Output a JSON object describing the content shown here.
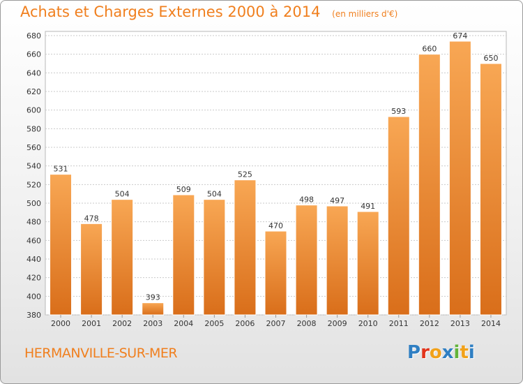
{
  "chart_data": {
    "type": "bar",
    "title": "Achats et Charges Externes 2000 à 2014",
    "unit_note": "(en milliers d'€)",
    "categories": [
      "2000",
      "2001",
      "2002",
      "2003",
      "2004",
      "2005",
      "2006",
      "2007",
      "2008",
      "2009",
      "2010",
      "2011",
      "2012",
      "2013",
      "2014"
    ],
    "values": [
      531,
      478,
      504,
      393,
      509,
      504,
      525,
      470,
      498,
      497,
      491,
      593,
      660,
      674,
      650
    ],
    "ylim": [
      380,
      680
    ],
    "yticks": [
      380,
      400,
      420,
      440,
      460,
      480,
      500,
      520,
      540,
      560,
      580,
      600,
      620,
      640,
      660,
      680
    ],
    "grid": true,
    "bar_color": "#f49a3e"
  },
  "location": "HERMANVILLE-SUR-MER",
  "logo": {
    "text": "Proxiti",
    "letter_colors": [
      "#2f7fc3",
      "#e2341c",
      "#f2a21a",
      "#2f7fc3",
      "#63b43a",
      "#f2a21a",
      "#2f7fc3"
    ]
  }
}
